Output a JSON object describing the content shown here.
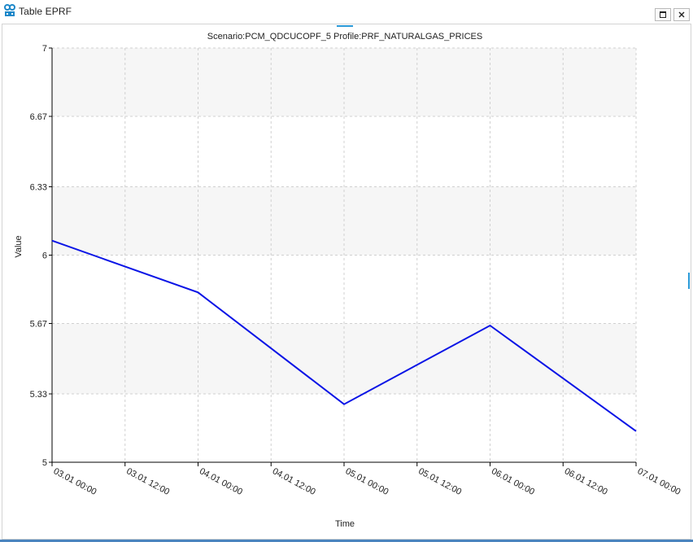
{
  "window": {
    "title": "Table EPRF",
    "icon": "app-icon",
    "maximize_icon": "maximize-icon",
    "close_icon": "close-icon"
  },
  "chart_data": {
    "type": "line",
    "title": "Scenario:PCM_QDCUCOPF_5  Profile:PRF_NATURALGAS_PRICES",
    "xlabel": "Time",
    "ylabel": "Value",
    "ylim": [
      5,
      7
    ],
    "yticks": [
      "5",
      "5.33",
      "5.67",
      "6",
      "6.33",
      "6.67",
      "7"
    ],
    "xticks": [
      "03.01 00:00",
      "03.01 12:00",
      "04.01 00:00",
      "04.01 12:00",
      "05.01 00:00",
      "05.01 12:00",
      "06.01 00:00",
      "06.01 12:00",
      "07.01 00:00"
    ],
    "xlim": [
      "03.01 00:00",
      "07.01 00:00"
    ],
    "grid": true,
    "series": [
      {
        "color": "#0a14e6",
        "x": [
          "03.01 00:00",
          "04.01 00:00",
          "05.01 00:00",
          "06.01 00:00",
          "07.01 00:00"
        ],
        "values": [
          6.07,
          5.82,
          5.28,
          5.66,
          5.15
        ]
      }
    ],
    "colors": {
      "band": "#f6f6f6",
      "grid": "#d0d0d0",
      "axis": "#000000"
    }
  }
}
